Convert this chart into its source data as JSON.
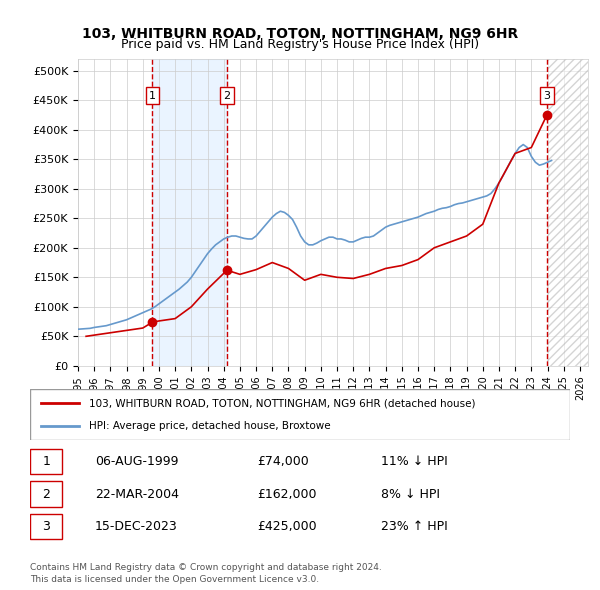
{
  "title": "103, WHITBURN ROAD, TOTON, NOTTINGHAM, NG9 6HR",
  "subtitle": "Price paid vs. HM Land Registry's House Price Index (HPI)",
  "legend_line1": "103, WHITBURN ROAD, TOTON, NOTTINGHAM, NG9 6HR (detached house)",
  "legend_line2": "HPI: Average price, detached house, Broxtowe",
  "footer1": "Contains HM Land Registry data © Crown copyright and database right 2024.",
  "footer2": "This data is licensed under the Open Government Licence v3.0.",
  "transactions": [
    {
      "num": 1,
      "date": "06-AUG-1999",
      "price": 74000,
      "pct": "11%",
      "dir": "↓",
      "year": 1999.6
    },
    {
      "num": 2,
      "date": "22-MAR-2004",
      "price": 162000,
      "pct": "8%",
      "dir": "↓",
      "year": 2004.2
    },
    {
      "num": 3,
      "date": "15-DEC-2023",
      "price": 425000,
      "pct": "23%",
      "dir": "↑",
      "year": 2023.96
    }
  ],
  "hpi_color": "#6699cc",
  "price_color": "#cc0000",
  "shade_color": "#ddeeff",
  "transaction_color": "#cc0000",
  "background_color": "#f5f5f5",
  "ylim": [
    0,
    520000
  ],
  "xlim_start": 1995,
  "xlim_end": 2026.5,
  "yticks": [
    0,
    50000,
    100000,
    150000,
    200000,
    250000,
    300000,
    350000,
    400000,
    450000,
    500000
  ],
  "ytick_labels": [
    "£0",
    "£50K",
    "£100K",
    "£150K",
    "£200K",
    "£250K",
    "£300K",
    "£350K",
    "£400K",
    "£450K",
    "£500K"
  ],
  "hpi_data": {
    "years": [
      1995.0,
      1995.25,
      1995.5,
      1995.75,
      1996.0,
      1996.25,
      1996.5,
      1996.75,
      1997.0,
      1997.25,
      1997.5,
      1997.75,
      1998.0,
      1998.25,
      1998.5,
      1998.75,
      1999.0,
      1999.25,
      1999.5,
      1999.75,
      2000.0,
      2000.25,
      2000.5,
      2000.75,
      2001.0,
      2001.25,
      2001.5,
      2001.75,
      2002.0,
      2002.25,
      2002.5,
      2002.75,
      2003.0,
      2003.25,
      2003.5,
      2003.75,
      2004.0,
      2004.25,
      2004.5,
      2004.75,
      2005.0,
      2005.25,
      2005.5,
      2005.75,
      2006.0,
      2006.25,
      2006.5,
      2006.75,
      2007.0,
      2007.25,
      2007.5,
      2007.75,
      2008.0,
      2008.25,
      2008.5,
      2008.75,
      2009.0,
      2009.25,
      2009.5,
      2009.75,
      2010.0,
      2010.25,
      2010.5,
      2010.75,
      2011.0,
      2011.25,
      2011.5,
      2011.75,
      2012.0,
      2012.25,
      2012.5,
      2012.75,
      2013.0,
      2013.25,
      2013.5,
      2013.75,
      2014.0,
      2014.25,
      2014.5,
      2014.75,
      2015.0,
      2015.25,
      2015.5,
      2015.75,
      2016.0,
      2016.25,
      2016.5,
      2016.75,
      2017.0,
      2017.25,
      2017.5,
      2017.75,
      2018.0,
      2018.25,
      2018.5,
      2018.75,
      2019.0,
      2019.25,
      2019.5,
      2019.75,
      2020.0,
      2020.25,
      2020.5,
      2020.75,
      2021.0,
      2021.25,
      2021.5,
      2021.75,
      2022.0,
      2022.25,
      2022.5,
      2022.75,
      2023.0,
      2023.25,
      2023.5,
      2023.75,
      2024.0,
      2024.25
    ],
    "values": [
      62000,
      62500,
      63000,
      63500,
      65000,
      66000,
      67000,
      68000,
      70000,
      72000,
      74000,
      76000,
      78000,
      81000,
      84000,
      87000,
      90000,
      93000,
      96000,
      100000,
      105000,
      110000,
      115000,
      120000,
      125000,
      130000,
      136000,
      142000,
      150000,
      160000,
      170000,
      180000,
      190000,
      198000,
      205000,
      210000,
      215000,
      218000,
      220000,
      220000,
      218000,
      216000,
      215000,
      215000,
      220000,
      228000,
      236000,
      244000,
      252000,
      258000,
      262000,
      260000,
      255000,
      248000,
      235000,
      220000,
      210000,
      205000,
      205000,
      208000,
      212000,
      215000,
      218000,
      218000,
      215000,
      215000,
      213000,
      210000,
      210000,
      213000,
      216000,
      218000,
      218000,
      220000,
      225000,
      230000,
      235000,
      238000,
      240000,
      242000,
      244000,
      246000,
      248000,
      250000,
      252000,
      255000,
      258000,
      260000,
      262000,
      265000,
      267000,
      268000,
      270000,
      273000,
      275000,
      276000,
      278000,
      280000,
      282000,
      284000,
      286000,
      288000,
      292000,
      300000,
      310000,
      322000,
      335000,
      348000,
      360000,
      370000,
      375000,
      370000,
      355000,
      345000,
      340000,
      342000,
      345000,
      348000
    ]
  },
  "price_data": {
    "years": [
      1995.5,
      1996.0,
      1996.5,
      1997.0,
      1997.5,
      1998.0,
      1998.5,
      1999.0,
      1999.6,
      2000.0,
      2001.0,
      2002.0,
      2003.0,
      2004.2,
      2005.0,
      2006.0,
      2007.0,
      2008.0,
      2009.0,
      2010.0,
      2011.0,
      2012.0,
      2013.0,
      2014.0,
      2015.0,
      2016.0,
      2017.0,
      2018.0,
      2019.0,
      2020.0,
      2021.0,
      2022.0,
      2023.0,
      2023.96
    ],
    "values": [
      50000,
      52000,
      54000,
      56000,
      58000,
      60000,
      62000,
      64000,
      74000,
      76000,
      80000,
      100000,
      130000,
      162000,
      155000,
      163000,
      175000,
      165000,
      145000,
      155000,
      150000,
      148000,
      155000,
      165000,
      170000,
      180000,
      200000,
      210000,
      220000,
      240000,
      310000,
      360000,
      370000,
      425000
    ]
  }
}
